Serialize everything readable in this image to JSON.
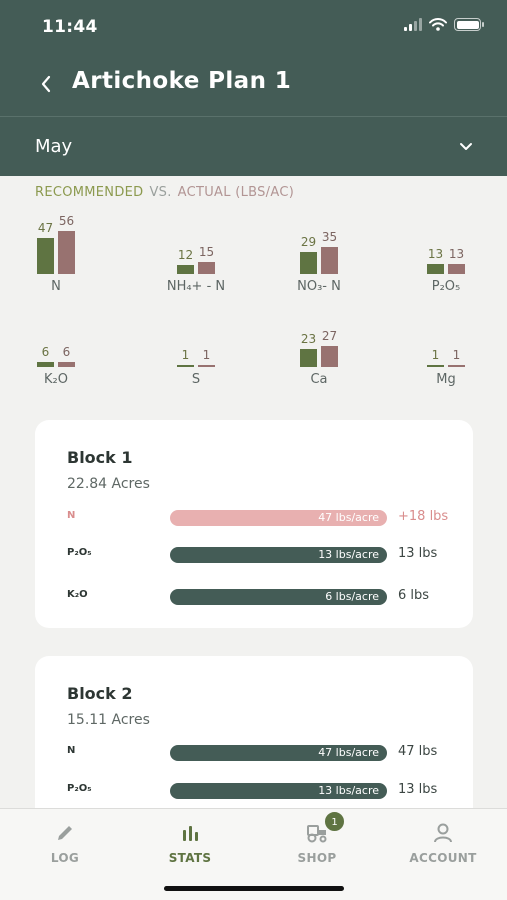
{
  "status_bar": {
    "time": "11:44"
  },
  "header": {
    "title": "Artichoke Plan 1",
    "back_icon": "chevron-left-icon"
  },
  "month_selector": {
    "value": "May",
    "icon": "chevron-down-icon"
  },
  "comparison": {
    "legend_recommended": "RECOMMENDED",
    "legend_vs": "VS.",
    "legend_actual": "ACTUAL (LBS/AC)",
    "colors": {
      "recommended": "#5f7442",
      "actual": "#987270"
    },
    "nutrients": [
      {
        "label": "N",
        "recommended": "47",
        "actual": "56"
      },
      {
        "label": "NH₄+ - N",
        "recommended": "12",
        "actual": "15"
      },
      {
        "label": "NO₃- N",
        "recommended": "29",
        "actual": "35"
      },
      {
        "label": "P₂O₅",
        "recommended": "13",
        "actual": "13"
      },
      {
        "label": "K₂O",
        "recommended": "6",
        "actual": "6"
      },
      {
        "label": "S",
        "recommended": "1",
        "actual": "1"
      },
      {
        "label": "Ca",
        "recommended": "23",
        "actual": "27"
      },
      {
        "label": "Mg",
        "recommended": "1",
        "actual": "1"
      }
    ]
  },
  "blocks": [
    {
      "title": "Block 1",
      "acres": "22.84 Acres",
      "rows": [
        {
          "label": "N",
          "rate": "47 lbs/acre",
          "value": "+18 lbs",
          "status": "over"
        },
        {
          "label": "P₂O₅",
          "rate": "13 lbs/acre",
          "value": "13 lbs",
          "status": "ok"
        },
        {
          "label": "K₂O",
          "rate": "6 lbs/acre",
          "value": "6 lbs",
          "status": "ok"
        }
      ]
    },
    {
      "title": "Block 2",
      "acres": "15.11 Acres",
      "rows": [
        {
          "label": "N",
          "rate": "47 lbs/acre",
          "value": "47 lbs",
          "status": "ok"
        },
        {
          "label": "P₂O₅",
          "rate": "13 lbs/acre",
          "value": "13 lbs",
          "status": "ok"
        }
      ]
    }
  ],
  "tabbar": {
    "tabs": [
      {
        "label": "LOG",
        "icon": "pencil-icon",
        "active": false
      },
      {
        "label": "STATS",
        "icon": "bar-chart-icon",
        "active": true
      },
      {
        "label": "SHOP",
        "icon": "tractor-icon",
        "active": false,
        "badge": "1"
      },
      {
        "label": "ACCOUNT",
        "icon": "person-icon",
        "active": false
      }
    ]
  }
}
